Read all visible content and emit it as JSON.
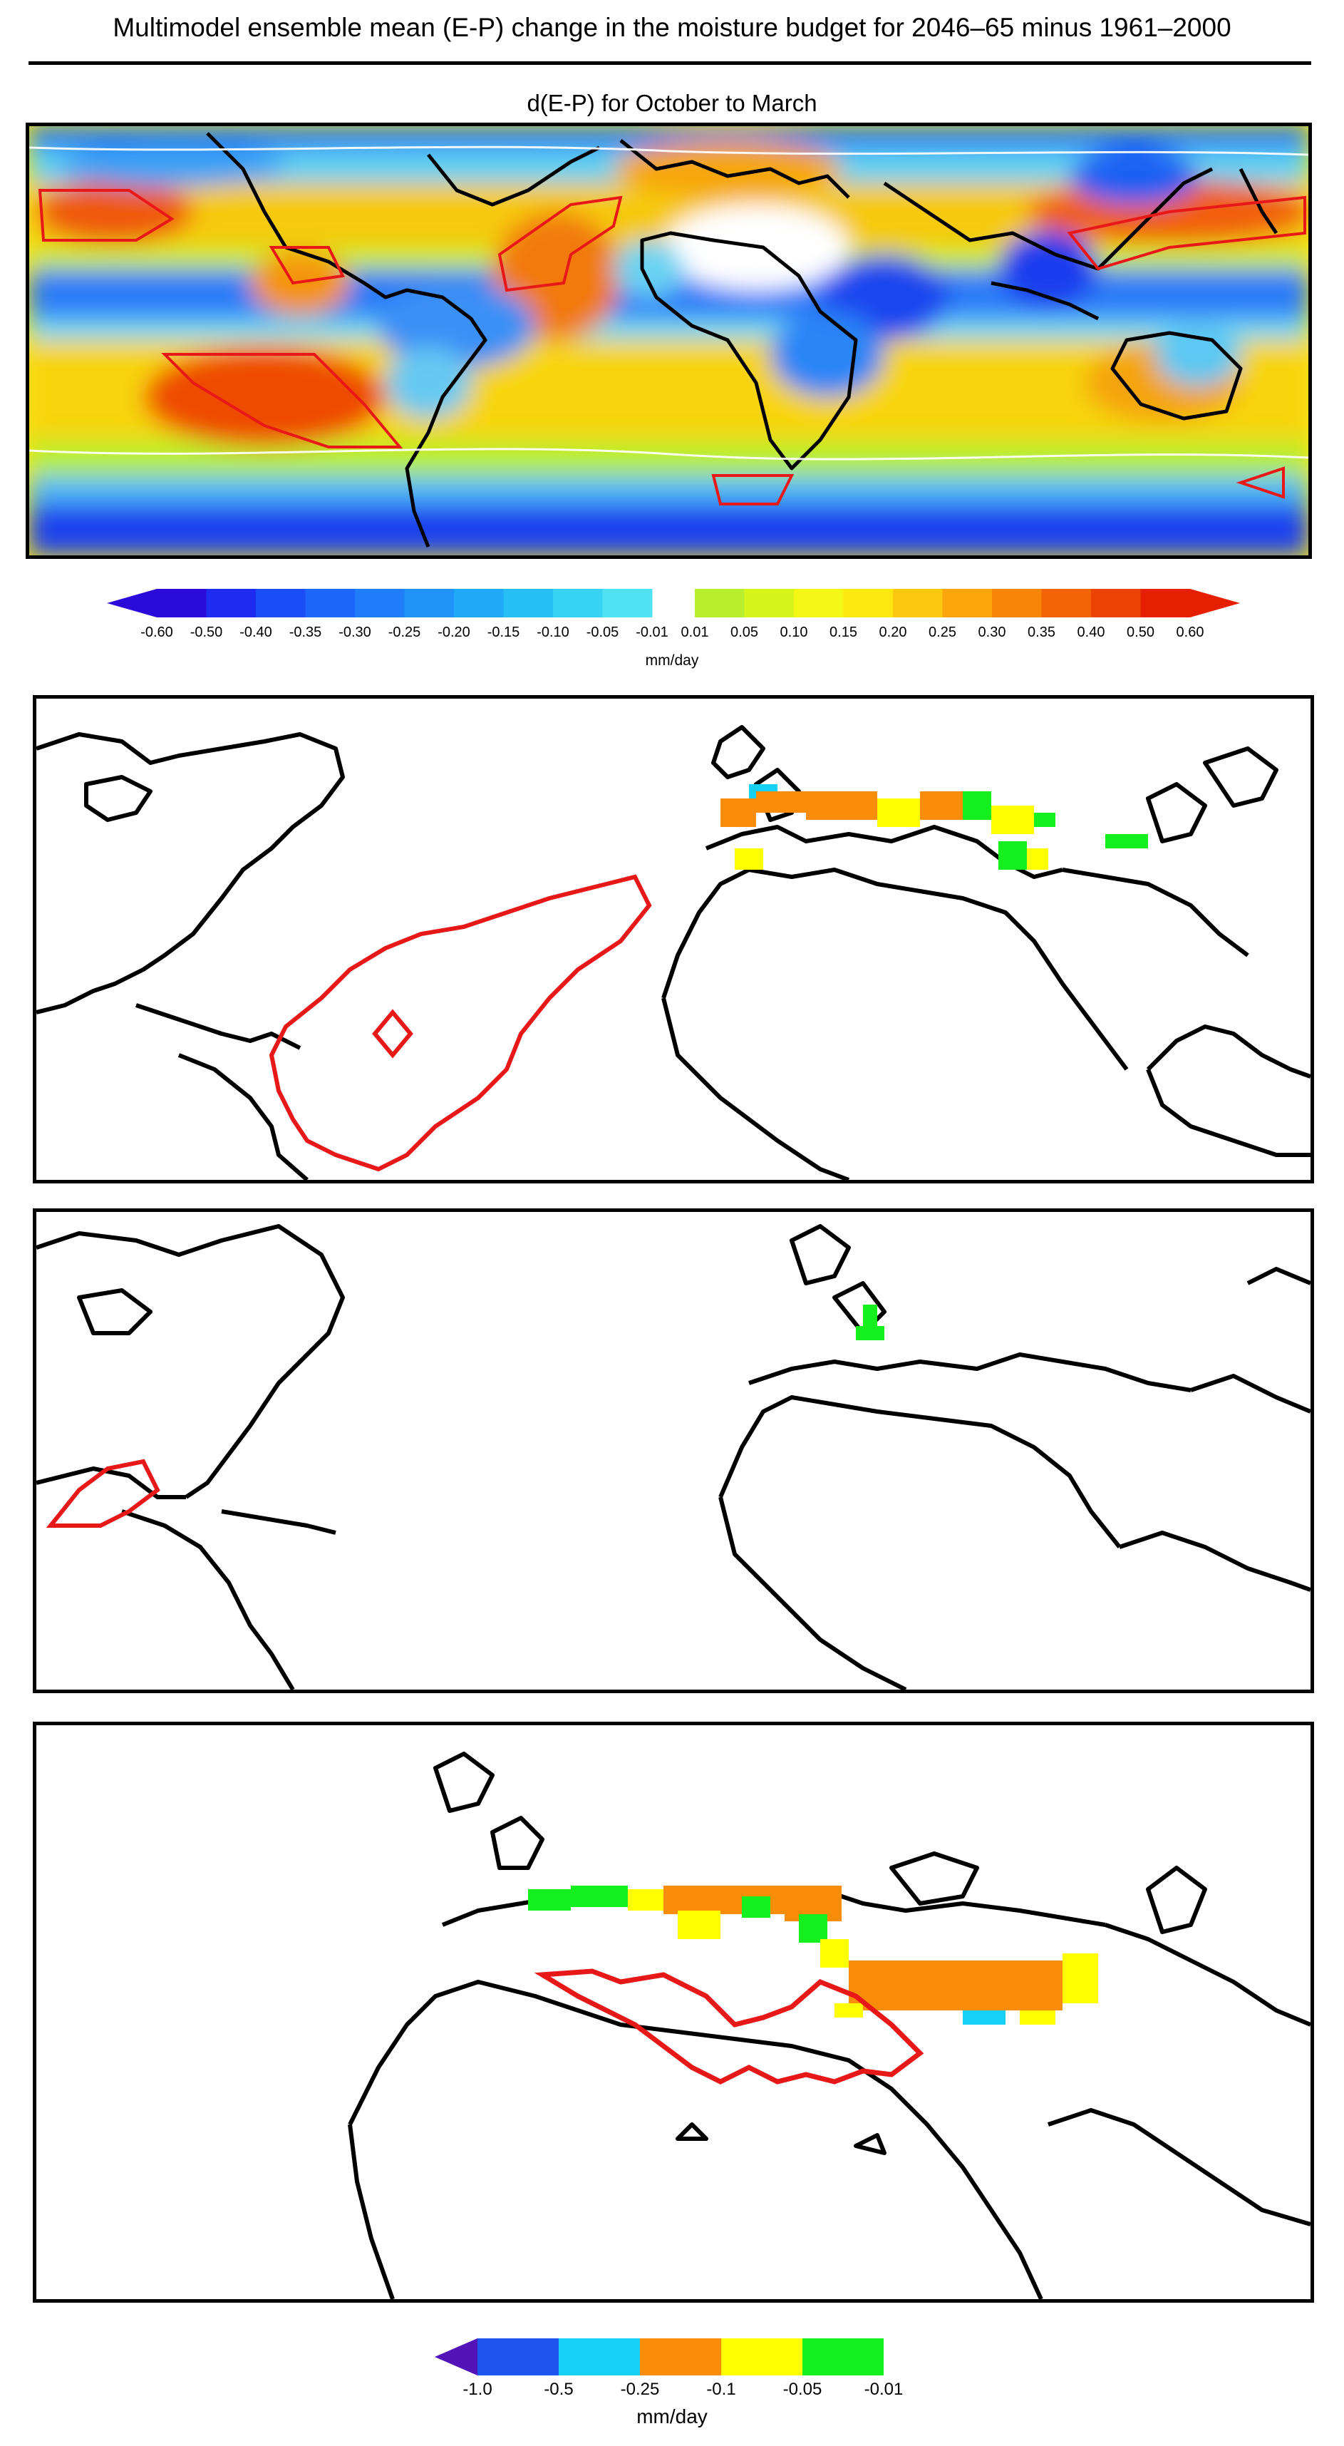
{
  "title": "Multimodel ensemble mean (E-P) change in the moisture budget for 2046–65 minus 1961–2000",
  "map_title": "d(E-P) for October to March",
  "colorbar_top": {
    "ticks": [
      "-0.60",
      "-0.50",
      "-0.40",
      "-0.35",
      "-0.30",
      "-0.25",
      "-0.20",
      "-0.15",
      "-0.10",
      "-0.05",
      "-0.01",
      "0.01",
      "0.05",
      "0.10",
      "0.15",
      "0.20",
      "0.25",
      "0.30",
      "0.35",
      "0.40",
      "0.50",
      "0.60"
    ],
    "unit": "mm/day",
    "neg_colors": [
      "#2a0bd9",
      "#1f2bf0",
      "#1b4df7",
      "#1d66fb",
      "#1f7df9",
      "#1f93f7",
      "#20a9f6",
      "#27bdf5",
      "#37d2f4",
      "#4fe2f3"
    ],
    "pos_colors": [
      "#b7ef2c",
      "#d6f51b",
      "#f2f714",
      "#fde70e",
      "#fdc80d",
      "#fba40b",
      "#f78508",
      "#f26406",
      "#ec4304",
      "#e61e02"
    ],
    "gap_color": "#ffffff"
  },
  "colorbar_bottom": {
    "ticks": [
      "-1.0",
      "-0.5",
      "-0.25",
      "-0.1",
      "-0.05",
      "-0.01"
    ],
    "unit": "mm/day",
    "colors": [
      "#5213b8",
      "#1e55f0",
      "#16d0f5",
      "#f98c08",
      "#ffff00",
      "#13f01d"
    ]
  },
  "legend_colors": {
    "coast": "#000000",
    "contour": "#ff1a1a"
  }
}
